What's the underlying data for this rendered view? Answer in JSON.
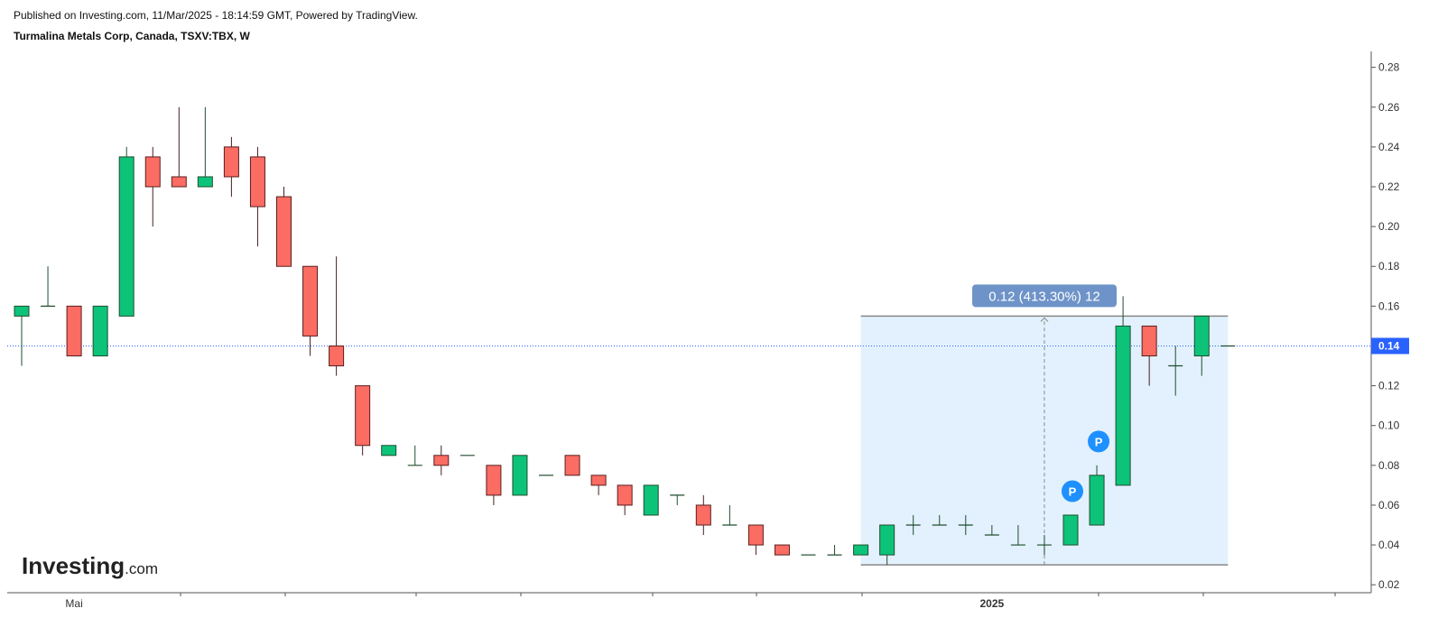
{
  "header": {
    "published": "Published on Investing.com, 11/Mar/2025 - 18:14:59 GMT, Powered by TradingView.",
    "symbol": "Turmalina Metals Corp, Canada, TSXV:TBX, W"
  },
  "logo": {
    "name": "Investing",
    "suffix": ".com"
  },
  "chart_data": {
    "type": "candlestick",
    "categories": [
      null,
      null,
      "Mai",
      null,
      null,
      null,
      null,
      null,
      null,
      null,
      null,
      null,
      null,
      null,
      null,
      null,
      null,
      null,
      null,
      null,
      null,
      null,
      null,
      null,
      null,
      null,
      null,
      null,
      null,
      null,
      null,
      null,
      null,
      null,
      null,
      null,
      null,
      "2025",
      null,
      null,
      null,
      null,
      null,
      null,
      null,
      null,
      null
    ],
    "open": [
      0.155,
      0.16,
      0.16,
      0.135,
      0.155,
      0.235,
      0.225,
      0.22,
      0.24,
      0.235,
      0.215,
      0.18,
      0.14,
      0.12,
      0.085,
      0.08,
      0.085,
      0.085,
      0.08,
      0.065,
      0.075,
      0.085,
      0.075,
      0.07,
      0.055,
      0.065,
      0.06,
      0.05,
      0.05,
      0.04,
      0.035,
      0.035,
      0.035,
      0.035,
      0.05,
      0.05,
      0.05,
      0.045,
      0.04,
      0.04,
      0.04,
      0.05,
      0.07,
      0.15,
      0.13,
      0.135,
      0.14
    ],
    "high": [
      0.16,
      0.18,
      0.16,
      0.16,
      0.24,
      0.24,
      0.26,
      0.26,
      0.245,
      0.24,
      0.22,
      0.18,
      0.185,
      0.12,
      0.09,
      0.09,
      0.09,
      0.085,
      0.08,
      0.085,
      0.075,
      0.085,
      0.075,
      0.07,
      0.07,
      0.065,
      0.065,
      0.06,
      0.05,
      0.04,
      0.035,
      0.04,
      0.04,
      0.05,
      0.055,
      0.055,
      0.055,
      0.05,
      0.05,
      0.045,
      0.055,
      0.08,
      0.165,
      0.15,
      0.14,
      0.155,
      0.14
    ],
    "low": [
      0.13,
      0.16,
      0.135,
      0.135,
      0.155,
      0.2,
      0.22,
      0.22,
      0.215,
      0.19,
      0.18,
      0.135,
      0.125,
      0.085,
      0.085,
      0.08,
      0.075,
      0.085,
      0.06,
      0.065,
      0.075,
      0.075,
      0.065,
      0.055,
      0.055,
      0.06,
      0.045,
      0.05,
      0.035,
      0.035,
      0.035,
      0.035,
      0.035,
      0.03,
      0.045,
      0.05,
      0.045,
      0.045,
      0.04,
      0.035,
      0.04,
      0.05,
      0.07,
      0.12,
      0.115,
      0.125,
      0.14
    ],
    "close": [
      0.16,
      0.16,
      0.135,
      0.16,
      0.235,
      0.22,
      0.22,
      0.225,
      0.225,
      0.21,
      0.18,
      0.145,
      0.13,
      0.09,
      0.09,
      0.08,
      0.08,
      0.085,
      0.065,
      0.085,
      0.075,
      0.075,
      0.07,
      0.06,
      0.07,
      0.065,
      0.05,
      0.05,
      0.04,
      0.035,
      0.035,
      0.035,
      0.04,
      0.05,
      0.05,
      0.05,
      0.05,
      0.045,
      0.04,
      0.04,
      0.055,
      0.075,
      0.15,
      0.135,
      0.13,
      0.155,
      0.14
    ],
    "up_color": "#0dc37a",
    "down_color": "#fb6c62",
    "ylim": [
      0.016,
      0.288
    ],
    "yticks": [
      0.02,
      0.04,
      0.06,
      0.08,
      {
        "value": 0.1,
        "label": "0.10"
      },
      0.12,
      0.14,
      0.16,
      0.18,
      {
        "value": 0.2,
        "label": "0.20"
      },
      0.22,
      0.24,
      0.26,
      0.28
    ],
    "last_price": 0.14,
    "measure": {
      "label": "0.12 (413.30%) 12",
      "start": 32,
      "end": 46,
      "low": 0.03,
      "high": 0.155
    },
    "markers": [
      {
        "label": "P",
        "index": 40,
        "y": 0.067
      },
      {
        "label": "P",
        "index": 41,
        "y": 0.092
      }
    ]
  }
}
